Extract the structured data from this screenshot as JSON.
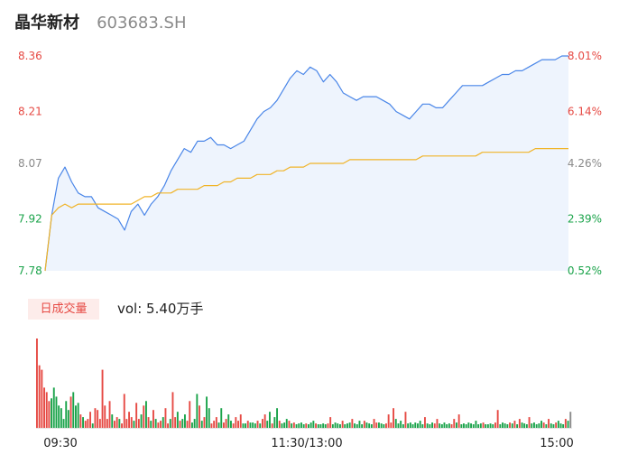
{
  "stock": {
    "name": "晶华新材",
    "code": "603683.SH"
  },
  "volume": {
    "tab_label": "日成交量",
    "vol_label": "vol: 5.40万手"
  },
  "colors": {
    "price_line": "#4a86e8",
    "avg_line": "#f0b429",
    "area_fill": "#eef4fd",
    "up": "#e64a44",
    "down": "#1aa34a",
    "flat": "#8a8a8a"
  },
  "chart_data": [
    {
      "type": "line",
      "title": "",
      "xlabel": "",
      "ylabel": "",
      "ylim": [
        7.78,
        8.36
      ],
      "y_ticks_left": [
        {
          "label": "8.36",
          "value": 8.36,
          "color": "up"
        },
        {
          "label": "8.21",
          "value": 8.21,
          "color": "up"
        },
        {
          "label": "8.07",
          "value": 8.07,
          "color": "flat"
        },
        {
          "label": "7.92",
          "value": 7.92,
          "color": "down"
        },
        {
          "label": "7.78",
          "value": 7.78,
          "color": "down"
        }
      ],
      "y_ticks_right": [
        {
          "label": "8.01%",
          "value": 8.36,
          "color": "up"
        },
        {
          "label": "6.14%",
          "value": 8.21,
          "color": "up"
        },
        {
          "label": "4.26%",
          "value": 8.07,
          "color": "flat"
        },
        {
          "label": "2.39%",
          "value": 7.92,
          "color": "down"
        },
        {
          "label": "0.52%",
          "value": 7.78,
          "color": "down"
        }
      ],
      "x_ticks": [
        "09:30",
        "11:30/13:00",
        "15:00"
      ],
      "series": [
        {
          "values": [
            7.78,
            7.93,
            8.03,
            8.06,
            8.02,
            7.99,
            7.98,
            7.98,
            7.95,
            7.94,
            7.93,
            7.92,
            7.89,
            7.94,
            7.96,
            7.93,
            7.96,
            7.98,
            8.01,
            8.05,
            8.08,
            8.11,
            8.1,
            8.13,
            8.13,
            8.14,
            8.12,
            8.12,
            8.11,
            8.12,
            8.13,
            8.16,
            8.19,
            8.21,
            8.22,
            8.24,
            8.27,
            8.3,
            8.32,
            8.31,
            8.33,
            8.32,
            8.29,
            8.31,
            8.29,
            8.26,
            8.25,
            8.24,
            8.25,
            8.25,
            8.25,
            8.24,
            8.23,
            8.21,
            8.2,
            8.19,
            8.21,
            8.23,
            8.23,
            8.22,
            8.22,
            8.24,
            8.26,
            8.28,
            8.28,
            8.28,
            8.28,
            8.29,
            8.3,
            8.31,
            8.31,
            8.32,
            8.32,
            8.33,
            8.34,
            8.35,
            8.35,
            8.35,
            8.36,
            8.36
          ],
          "color": "price_line"
        },
        {
          "values": [
            7.78,
            7.93,
            7.95,
            7.96,
            7.95,
            7.96,
            7.96,
            7.96,
            7.96,
            7.96,
            7.96,
            7.96,
            7.96,
            7.96,
            7.97,
            7.98,
            7.98,
            7.99,
            7.99,
            7.99,
            8.0,
            8.0,
            8.0,
            8.0,
            8.01,
            8.01,
            8.01,
            8.02,
            8.02,
            8.03,
            8.03,
            8.03,
            8.04,
            8.04,
            8.04,
            8.05,
            8.05,
            8.06,
            8.06,
            8.06,
            8.07,
            8.07,
            8.07,
            8.07,
            8.07,
            8.07,
            8.08,
            8.08,
            8.08,
            8.08,
            8.08,
            8.08,
            8.08,
            8.08,
            8.08,
            8.08,
            8.08,
            8.09,
            8.09,
            8.09,
            8.09,
            8.09,
            8.09,
            8.09,
            8.09,
            8.09,
            8.1,
            8.1,
            8.1,
            8.1,
            8.1,
            8.1,
            8.1,
            8.1,
            8.11,
            8.11,
            8.11,
            8.11,
            8.11,
            8.11
          ],
          "color": "avg_line"
        }
      ]
    },
    {
      "type": "bar",
      "title": "",
      "xlabel": "",
      "ylabel": "",
      "ylim": [
        0,
        100
      ],
      "bars": [
        [
          100,
          "up"
        ],
        [
          70,
          "up"
        ],
        [
          65,
          "up"
        ],
        [
          45,
          "up"
        ],
        [
          40,
          "up"
        ],
        [
          30,
          "up"
        ],
        [
          33,
          "down"
        ],
        [
          45,
          "down"
        ],
        [
          35,
          "down"
        ],
        [
          25,
          "down"
        ],
        [
          22,
          "down"
        ],
        [
          10,
          "down"
        ],
        [
          30,
          "down"
        ],
        [
          20,
          "down"
        ],
        [
          35,
          "up"
        ],
        [
          40,
          "down"
        ],
        [
          25,
          "down"
        ],
        [
          28,
          "down"
        ],
        [
          15,
          "up"
        ],
        [
          12,
          "down"
        ],
        [
          8,
          "up"
        ],
        [
          10,
          "up"
        ],
        [
          18,
          "up"
        ],
        [
          5,
          "down"
        ],
        [
          22,
          "up"
        ],
        [
          20,
          "up"
        ],
        [
          10,
          "up"
        ],
        [
          65,
          "up"
        ],
        [
          25,
          "up"
        ],
        [
          10,
          "up"
        ],
        [
          30,
          "up"
        ],
        [
          15,
          "down"
        ],
        [
          8,
          "up"
        ],
        [
          12,
          "up"
        ],
        [
          10,
          "down"
        ],
        [
          5,
          "up"
        ],
        [
          38,
          "up"
        ],
        [
          10,
          "up"
        ],
        [
          18,
          "up"
        ],
        [
          12,
          "up"
        ],
        [
          8,
          "down"
        ],
        [
          28,
          "up"
        ],
        [
          10,
          "up"
        ],
        [
          15,
          "down"
        ],
        [
          25,
          "up"
        ],
        [
          30,
          "down"
        ],
        [
          12,
          "up"
        ],
        [
          8,
          "down"
        ],
        [
          20,
          "up"
        ],
        [
          10,
          "down"
        ],
        [
          6,
          "up"
        ],
        [
          8,
          "up"
        ],
        [
          12,
          "down"
        ],
        [
          22,
          "up"
        ],
        [
          5,
          "up"
        ],
        [
          10,
          "down"
        ],
        [
          40,
          "up"
        ],
        [
          12,
          "up"
        ],
        [
          18,
          "down"
        ],
        [
          8,
          "up"
        ],
        [
          10,
          "down"
        ],
        [
          15,
          "down"
        ],
        [
          8,
          "up"
        ],
        [
          30,
          "up"
        ],
        [
          6,
          "down"
        ],
        [
          10,
          "down"
        ],
        [
          38,
          "down"
        ],
        [
          25,
          "up"
        ],
        [
          8,
          "down"
        ],
        [
          12,
          "up"
        ],
        [
          35,
          "down"
        ],
        [
          22,
          "down"
        ],
        [
          5,
          "up"
        ],
        [
          8,
          "up"
        ],
        [
          12,
          "up"
        ],
        [
          6,
          "down"
        ],
        [
          22,
          "down"
        ],
        [
          6,
          "up"
        ],
        [
          10,
          "up"
        ],
        [
          15,
          "down"
        ],
        [
          8,
          "down"
        ],
        [
          5,
          "up"
        ],
        [
          12,
          "up"
        ],
        [
          8,
          "up"
        ],
        [
          15,
          "up"
        ],
        [
          5,
          "down"
        ],
        [
          5,
          "down"
        ],
        [
          8,
          "up"
        ],
        [
          6,
          "down"
        ],
        [
          6,
          "down"
        ],
        [
          5,
          "down"
        ],
        [
          8,
          "up"
        ],
        [
          5,
          "down"
        ],
        [
          10,
          "up"
        ],
        [
          15,
          "up"
        ],
        [
          8,
          "down"
        ],
        [
          18,
          "down"
        ],
        [
          5,
          "up"
        ],
        [
          12,
          "down"
        ],
        [
          22,
          "down"
        ],
        [
          8,
          "up"
        ],
        [
          5,
          "down"
        ],
        [
          6,
          "down"
        ],
        [
          10,
          "down"
        ],
        [
          8,
          "up"
        ],
        [
          5,
          "down"
        ],
        [
          6,
          "up"
        ],
        [
          4,
          "down"
        ],
        [
          5,
          "down"
        ],
        [
          6,
          "down"
        ],
        [
          4,
          "down"
        ],
        [
          5,
          "up"
        ],
        [
          4,
          "down"
        ],
        [
          6,
          "down"
        ],
        [
          8,
          "down"
        ],
        [
          5,
          "up"
        ],
        [
          4,
          "down"
        ],
        [
          4,
          "down"
        ],
        [
          5,
          "down"
        ],
        [
          4,
          "down"
        ],
        [
          5,
          "up"
        ],
        [
          12,
          "up"
        ],
        [
          4,
          "down"
        ],
        [
          6,
          "down"
        ],
        [
          5,
          "down"
        ],
        [
          4,
          "down"
        ],
        [
          8,
          "up"
        ],
        [
          4,
          "down"
        ],
        [
          5,
          "down"
        ],
        [
          6,
          "down"
        ],
        [
          10,
          "up"
        ],
        [
          5,
          "down"
        ],
        [
          4,
          "down"
        ],
        [
          8,
          "down"
        ],
        [
          4,
          "down"
        ],
        [
          8,
          "up"
        ],
        [
          6,
          "down"
        ],
        [
          5,
          "down"
        ],
        [
          4,
          "down"
        ],
        [
          10,
          "up"
        ],
        [
          6,
          "up"
        ],
        [
          6,
          "down"
        ],
        [
          5,
          "down"
        ],
        [
          4,
          "down"
        ],
        [
          5,
          "up"
        ],
        [
          15,
          "up"
        ],
        [
          6,
          "up"
        ],
        [
          22,
          "up"
        ],
        [
          10,
          "down"
        ],
        [
          5,
          "down"
        ],
        [
          8,
          "down"
        ],
        [
          4,
          "down"
        ],
        [
          18,
          "up"
        ],
        [
          5,
          "down"
        ],
        [
          6,
          "down"
        ],
        [
          4,
          "down"
        ],
        [
          6,
          "down"
        ],
        [
          5,
          "down"
        ],
        [
          8,
          "down"
        ],
        [
          4,
          "down"
        ],
        [
          12,
          "up"
        ],
        [
          5,
          "down"
        ],
        [
          4,
          "down"
        ],
        [
          6,
          "down"
        ],
        [
          5,
          "up"
        ],
        [
          10,
          "up"
        ],
        [
          5,
          "down"
        ],
        [
          4,
          "down"
        ],
        [
          6,
          "down"
        ],
        [
          4,
          "down"
        ],
        [
          5,
          "down"
        ],
        [
          4,
          "up"
        ],
        [
          10,
          "up"
        ],
        [
          6,
          "down"
        ],
        [
          15,
          "up"
        ],
        [
          4,
          "down"
        ],
        [
          5,
          "down"
        ],
        [
          4,
          "down"
        ],
        [
          6,
          "down"
        ],
        [
          5,
          "down"
        ],
        [
          4,
          "down"
        ],
        [
          8,
          "down"
        ],
        [
          4,
          "down"
        ],
        [
          5,
          "down"
        ],
        [
          6,
          "up"
        ],
        [
          4,
          "down"
        ],
        [
          4,
          "down"
        ],
        [
          5,
          "down"
        ],
        [
          4,
          "down"
        ],
        [
          6,
          "up"
        ],
        [
          20,
          "up"
        ],
        [
          4,
          "down"
        ],
        [
          6,
          "down"
        ],
        [
          5,
          "down"
        ],
        [
          4,
          "down"
        ],
        [
          6,
          "up"
        ],
        [
          5,
          "down"
        ],
        [
          8,
          "up"
        ],
        [
          4,
          "down"
        ],
        [
          10,
          "up"
        ],
        [
          6,
          "down"
        ],
        [
          5,
          "down"
        ],
        [
          4,
          "down"
        ],
        [
          12,
          "up"
        ],
        [
          5,
          "down"
        ],
        [
          6,
          "down"
        ],
        [
          4,
          "down"
        ],
        [
          5,
          "down"
        ],
        [
          8,
          "down"
        ],
        [
          6,
          "up"
        ],
        [
          4,
          "down"
        ],
        [
          10,
          "up"
        ],
        [
          5,
          "down"
        ],
        [
          4,
          "down"
        ],
        [
          6,
          "up"
        ],
        [
          8,
          "down"
        ],
        [
          5,
          "down"
        ],
        [
          4,
          "down"
        ],
        [
          10,
          "up"
        ],
        [
          8,
          "down"
        ],
        [
          18,
          "flat"
        ]
      ]
    }
  ]
}
